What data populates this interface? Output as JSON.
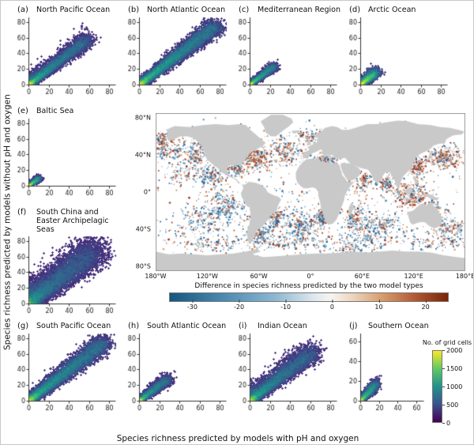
{
  "figure": {
    "x_axis_label": "Species richness predicted by models with pH and oxygen",
    "y_axis_label": "Species richness predicted by models without pH and oxygen"
  },
  "map": {
    "x_ticks": [
      "180°W",
      "120°W",
      "60°W",
      "0°",
      "60°E",
      "120°E",
      "180°E"
    ],
    "y_ticks": [
      "80°N",
      "40°N",
      "0°",
      "40°S",
      "80°S"
    ],
    "colorbar": {
      "label": "Difference in species richness predicted by the two model types",
      "ticks": [
        -30,
        -20,
        -10,
        0,
        10,
        20
      ],
      "range": [
        -35,
        25
      ],
      "negative_color": "#16557e",
      "positive_color": "#7a2408",
      "land_color": "#c9c9c9"
    }
  },
  "grid_legend": {
    "label": "No. of grid cells",
    "ticks": [
      0,
      500,
      1000,
      1500,
      2000
    ],
    "max": 2000,
    "colormap": "viridis",
    "min_color": "#440154",
    "max_color": "#fde725"
  },
  "chart_data": {
    "type": "multi-panel density scatter + world map",
    "panels": [
      {
        "letter": "(a)",
        "title": "North Pacific Ocean",
        "x_ticks": [
          0,
          20,
          40,
          60,
          80
        ],
        "y_ticks": [
          0,
          20,
          40,
          60,
          80
        ],
        "x_max": 86,
        "y_max": 86,
        "summary": "dense diagonal cloud from 0 to ~58, density peak near (8,9)",
        "density": {
          "extent": 58,
          "start": 1,
          "power": 2.0,
          "width": 3.6,
          "up_frac": 0.15,
          "up_spread": 6,
          "n": 6500
        }
      },
      {
        "letter": "(b)",
        "title": "North Atlantic Ocean",
        "x_ticks": [
          0,
          20,
          40,
          60,
          80
        ],
        "y_ticks": [
          0,
          20,
          40,
          60,
          80
        ],
        "x_max": 86,
        "y_max": 86,
        "summary": "long tight diagonal cloud up to ~76 with bright core 5-45",
        "density": {
          "extent": 76,
          "start": 1,
          "power": 1.6,
          "width": 4.2,
          "up_frac": 0.08,
          "up_spread": 4,
          "n": 8000
        }
      },
      {
        "letter": "(c)",
        "title": "Mediterranean Region",
        "x_ticks": [
          0,
          20,
          40,
          60,
          80
        ],
        "y_ticks": [
          0,
          20,
          40,
          60,
          80
        ],
        "x_max": 86,
        "y_max": 86,
        "summary": "small diagonal cloud up to ~24",
        "density": {
          "extent": 24,
          "start": 0.5,
          "power": 1.7,
          "width": 2.2,
          "up_frac": 0.1,
          "up_spread": 2.5,
          "n": 3000
        }
      },
      {
        "letter": "(d)",
        "title": "Arctic Ocean",
        "x_ticks": [
          0,
          20,
          40,
          60,
          80
        ],
        "y_ticks": [
          0,
          20,
          40,
          60,
          80
        ],
        "x_max": 86,
        "y_max": 86,
        "summary": "compact blob near origin up to ~15, slightly above diagonal",
        "density": {
          "extent": 15,
          "start": 0.5,
          "power": 1.3,
          "width": 2.4,
          "up_frac": 0.3,
          "up_spread": 3.5,
          "n": 2500
        }
      },
      {
        "letter": "(e)",
        "title": "Baltic Sea",
        "x_ticks": [
          0,
          20,
          40,
          60,
          80
        ],
        "y_ticks": [
          0,
          20,
          40,
          60,
          80
        ],
        "x_max": 86,
        "y_max": 86,
        "summary": "tiny blob near origin up to ~10",
        "density": {
          "extent": 10,
          "start": 0.3,
          "power": 1.5,
          "width": 1.5,
          "up_frac": 0.1,
          "up_spread": 2,
          "n": 2000
        }
      },
      {
        "letter": "(f)",
        "title": "South China and Easter Archipelagic Seas",
        "x_ticks": [
          0,
          20,
          40,
          60,
          80
        ],
        "y_ticks": [
          0,
          20,
          40,
          60,
          80
        ],
        "x_max": 86,
        "y_max": 86,
        "summary": "broad diffuse diagonal cloud up to ~66 with wide spread above diagonal",
        "density": {
          "extent": 66,
          "start": 1,
          "power": 1.7,
          "width": 7.5,
          "up_frac": 0.3,
          "up_spread": 11,
          "n": 9000
        }
      },
      {
        "letter": "(g)",
        "title": "South Pacific Ocean",
        "x_ticks": [
          0,
          20,
          40,
          60,
          80
        ],
        "y_ticks": [
          0,
          20,
          40,
          60,
          80
        ],
        "x_max": 86,
        "y_max": 86,
        "summary": "long diagonal cloud up to ~74, bright core 5-30",
        "density": {
          "extent": 74,
          "start": 1,
          "power": 1.6,
          "width": 4.6,
          "up_frac": 0.1,
          "up_spread": 5,
          "n": 8000
        }
      },
      {
        "letter": "(h)",
        "title": "South Atlantic Ocean",
        "x_ticks": [
          0,
          20,
          40,
          60,
          80
        ],
        "y_ticks": [
          0,
          20,
          40,
          60,
          80
        ],
        "x_max": 86,
        "y_max": 86,
        "summary": "small diagonal cloud up to ~28",
        "density": {
          "extent": 28,
          "start": 0.5,
          "power": 1.8,
          "width": 2.8,
          "up_frac": 0.1,
          "up_spread": 3,
          "n": 3200
        }
      },
      {
        "letter": "(i)",
        "title": "Indian Ocean",
        "x_ticks": [
          0,
          20,
          40,
          60,
          80
        ],
        "y_ticks": [
          0,
          20,
          40,
          60,
          80
        ],
        "x_max": 86,
        "y_max": 86,
        "summary": "diagonal cloud up to ~62, bright core 5-25, spread above diagonal",
        "density": {
          "extent": 62,
          "start": 1,
          "power": 1.9,
          "width": 4.6,
          "up_frac": 0.22,
          "up_spread": 8,
          "n": 7000
        }
      },
      {
        "letter": "(j)",
        "title": "Southern Ocean",
        "x_ticks": [
          0,
          20,
          40,
          60
        ],
        "y_ticks": [
          0,
          20,
          40,
          60
        ],
        "x_max": 68,
        "y_max": 68,
        "summary": "small blob near origin up to ~17",
        "density": {
          "extent": 17,
          "start": 0.4,
          "power": 1.5,
          "width": 2.2,
          "up_frac": 0.15,
          "up_spread": 2.5,
          "n": 2200
        }
      }
    ],
    "map": {
      "type": "map",
      "projection": "equirectangular",
      "lon_range": [
        -180,
        180
      ],
      "lat_range": [
        -85,
        85
      ],
      "variable": "Difference in species richness predicted by the two model types",
      "colorbar_range": [
        -35,
        25
      ],
      "speckle_clusters": [
        [
          0,
          0,
          150,
          50,
          800,
          0.45
        ],
        [
          0,
          -45,
          150,
          12,
          300,
          0.45
        ],
        [
          155,
          38,
          10,
          6,
          260,
          0.7
        ],
        [
          -170,
          47,
          14,
          7,
          220,
          0.5
        ],
        [
          -135,
          42,
          7,
          8,
          150,
          0.45
        ],
        [
          -115,
          18,
          7,
          6,
          130,
          0.35
        ],
        [
          -100,
          -14,
          12,
          8,
          220,
          0.25
        ],
        [
          -130,
          -30,
          14,
          8,
          150,
          0.35
        ],
        [
          -65,
          37,
          8,
          6,
          230,
          0.75
        ],
        [
          -30,
          45,
          11,
          7,
          190,
          0.55
        ],
        [
          17,
          35,
          9,
          3,
          130,
          0.5
        ],
        [
          -12,
          -35,
          11,
          7,
          220,
          0.28
        ],
        [
          -42,
          -27,
          5,
          6,
          110,
          0.4
        ],
        [
          -60,
          -44,
          6,
          5,
          130,
          0.35
        ],
        [
          11,
          -26,
          4,
          6,
          100,
          0.45
        ],
        [
          62,
          13,
          6,
          5,
          120,
          0.6
        ],
        [
          87,
          11,
          5,
          5,
          100,
          0.55
        ],
        [
          117,
          -3,
          12,
          7,
          260,
          0.65
        ],
        [
          78,
          -35,
          13,
          7,
          190,
          0.35
        ],
        [
          50,
          -27,
          6,
          6,
          120,
          0.4
        ],
        [
          -120,
          -55,
          24,
          4,
          110,
          0.4
        ],
        [
          -30,
          -53,
          24,
          4,
          110,
          0.45
        ],
        [
          60,
          -50,
          24,
          4,
          110,
          0.4
        ],
        [
          150,
          -53,
          22,
          4,
          110,
          0.45
        ],
        [
          160,
          -38,
          9,
          6,
          140,
          0.5
        ],
        [
          0,
          61,
          8,
          4,
          100,
          0.5
        ],
        [
          -175,
          57,
          8,
          4,
          90,
          0.5
        ],
        [
          -85,
          25,
          6,
          4,
          90,
          0.5
        ],
        [
          123,
          27,
          6,
          6,
          150,
          0.7
        ],
        [
          140,
          -20,
          8,
          6,
          120,
          0.55
        ],
        [
          -150,
          20,
          12,
          6,
          90,
          0.4
        ],
        [
          40,
          -60,
          20,
          3,
          80,
          0.45
        ]
      ]
    }
  }
}
